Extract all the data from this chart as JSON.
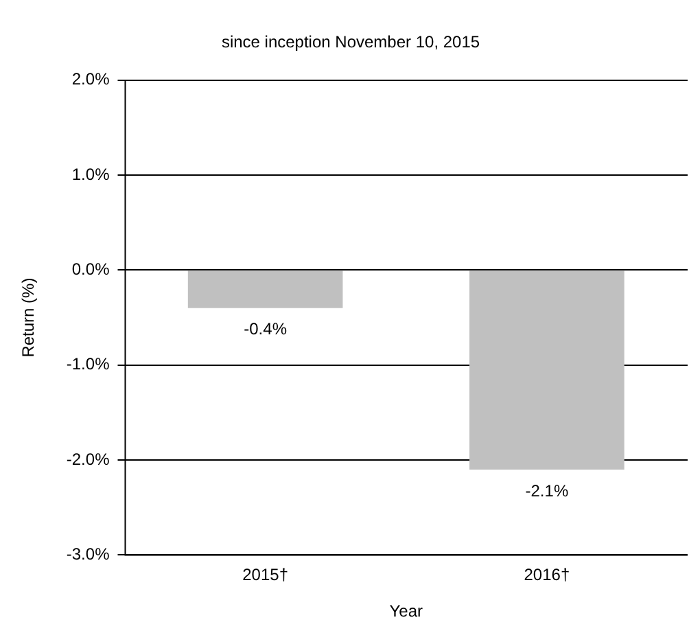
{
  "chart_data": {
    "type": "bar",
    "title": "since inception November 10, 2015",
    "xlabel": "Year",
    "ylabel": "Return (%)",
    "categories": [
      "2015†",
      "2016†"
    ],
    "values": [
      -0.4,
      -2.1
    ],
    "color": "#c0c0c0",
    "value_labels": [
      "-0.4%",
      "-2.1%"
    ],
    "ylim": [
      -3,
      2
    ],
    "yticks": [
      {
        "value": -3,
        "label": "-3.0%"
      },
      {
        "value": -2,
        "label": "-2.0%"
      },
      {
        "value": -1,
        "label": "-1.0%"
      },
      {
        "value": 0,
        "label": "0.0%"
      },
      {
        "value": 1,
        "label": "1.0%"
      },
      {
        "value": 2,
        "label": "2.0%"
      }
    ],
    "grid": "y",
    "legend": false
  }
}
